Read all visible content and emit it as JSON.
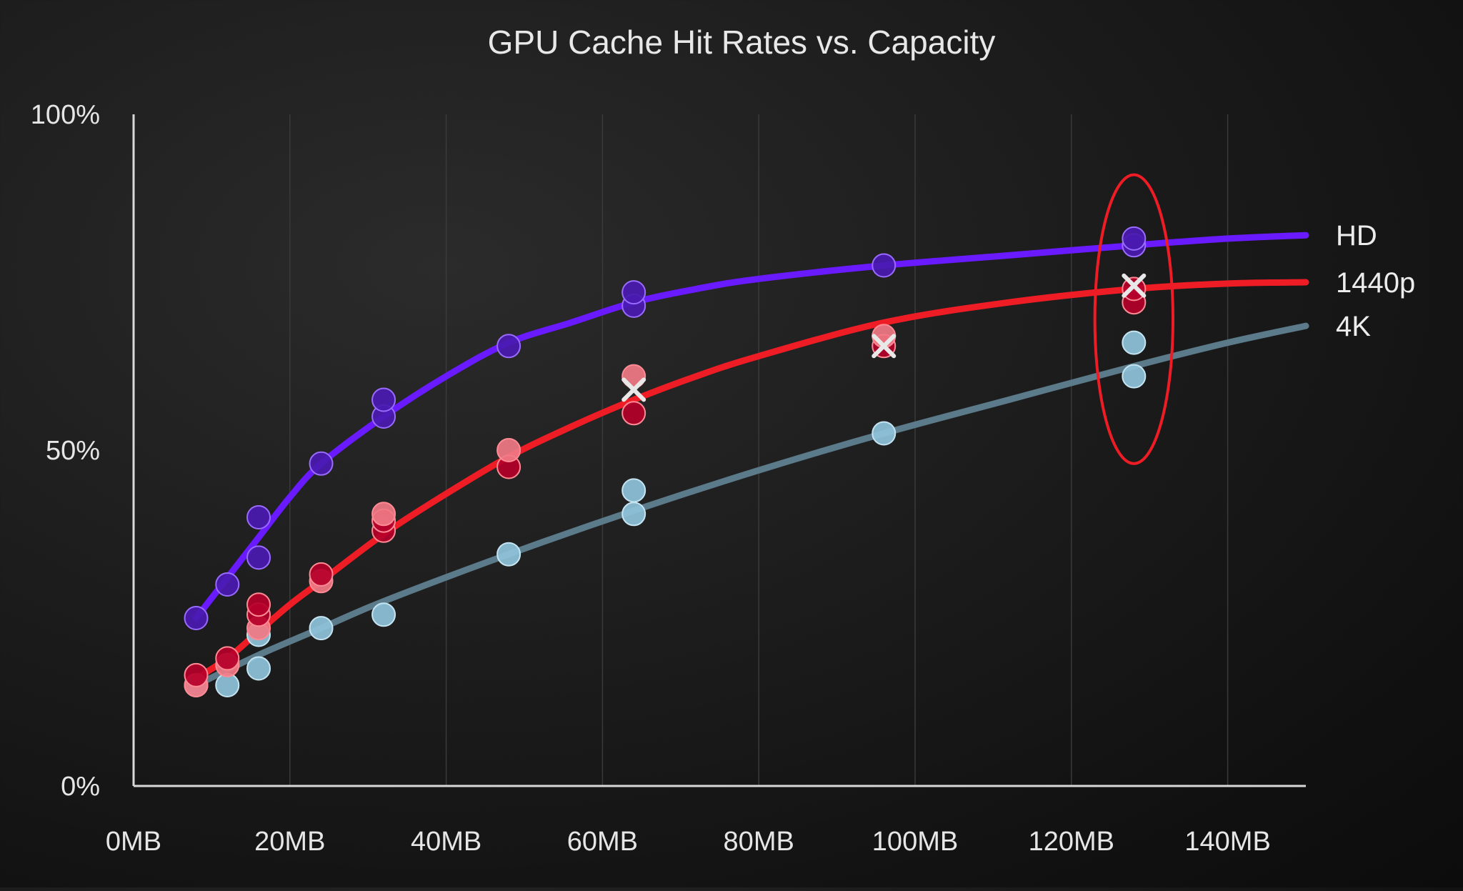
{
  "chart_data": {
    "type": "scatter",
    "title": "GPU Cache Hit Rates vs. Capacity",
    "xlabel": "",
    "ylabel": "",
    "x_ticks": [
      "0MB",
      "20MB",
      "40MB",
      "60MB",
      "80MB",
      "100MB",
      "120MB",
      "140MB"
    ],
    "x_tick_values": [
      0,
      20,
      40,
      60,
      80,
      100,
      120,
      140
    ],
    "y_ticks": [
      "0%",
      "50%",
      "100%"
    ],
    "y_tick_values": [
      0,
      50,
      100
    ],
    "xlim": [
      0,
      150
    ],
    "ylim": [
      0,
      100
    ],
    "grid": "vertical",
    "legend": "right, inline at line ends",
    "series": [
      {
        "name": "HD",
        "color": "#6a1aff",
        "fill": "#4a1ab0",
        "trend_x": [
          8,
          12,
          16,
          20,
          24,
          32,
          40,
          48,
          56,
          64,
          72,
          80,
          96,
          112,
          128,
          140,
          150
        ],
        "trend_y": [
          25,
          31,
          37,
          43,
          48,
          55,
          61,
          66,
          69,
          72,
          74,
          75.5,
          77.5,
          79,
          80.5,
          81.5,
          82
        ],
        "points": [
          {
            "x": 8,
            "y": 25
          },
          {
            "x": 12,
            "y": 30
          },
          {
            "x": 16,
            "y": 34
          },
          {
            "x": 16,
            "y": 40
          },
          {
            "x": 24,
            "y": 48
          },
          {
            "x": 32,
            "y": 55
          },
          {
            "x": 32,
            "y": 57.5
          },
          {
            "x": 48,
            "y": 65.5
          },
          {
            "x": 64,
            "y": 71.5
          },
          {
            "x": 64,
            "y": 73.5
          },
          {
            "x": 96,
            "y": 77.5
          },
          {
            "x": 128,
            "y": 80.5
          },
          {
            "x": 128,
            "y": 81.5
          }
        ]
      },
      {
        "name": "1440p",
        "color": "#ee1c25",
        "fill": "#b5002a",
        "fill_alt": "#f07a86",
        "trend_x": [
          8,
          12,
          16,
          20,
          24,
          32,
          40,
          48,
          56,
          64,
          72,
          80,
          96,
          112,
          128,
          140,
          150
        ],
        "trend_y": [
          16,
          19,
          23,
          27,
          30.5,
          37.5,
          43.5,
          49,
          53.5,
          57.5,
          61,
          64,
          69,
          72,
          74,
          74.8,
          75
        ],
        "points": [
          {
            "x": 8,
            "y": 15,
            "alt": true
          },
          {
            "x": 8,
            "y": 16.5
          },
          {
            "x": 12,
            "y": 18,
            "alt": true
          },
          {
            "x": 12,
            "y": 19
          },
          {
            "x": 16,
            "y": 23.5,
            "alt": true
          },
          {
            "x": 16,
            "y": 25.5
          },
          {
            "x": 16,
            "y": 27
          },
          {
            "x": 24,
            "y": 30.5,
            "alt": true
          },
          {
            "x": 24,
            "y": 31.5
          },
          {
            "x": 32,
            "y": 38
          },
          {
            "x": 32,
            "y": 39.5
          },
          {
            "x": 32,
            "y": 40.5,
            "alt": true
          },
          {
            "x": 48,
            "y": 47.5
          },
          {
            "x": 48,
            "y": 50,
            "alt": true
          },
          {
            "x": 64,
            "y": 55.5
          },
          {
            "x": 64,
            "y": 61,
            "alt": true
          },
          {
            "x": 96,
            "y": 65.5
          },
          {
            "x": 96,
            "y": 67,
            "alt": true
          },
          {
            "x": 128,
            "y": 72
          },
          {
            "x": 128,
            "y": 74
          }
        ],
        "crosses": [
          {
            "x": 64,
            "y": 59
          },
          {
            "x": 96,
            "y": 65.5
          },
          {
            "x": 128,
            "y": 74.5
          }
        ]
      },
      {
        "name": "4K",
        "color": "#5b7a8a",
        "fill": "#8fc3da",
        "trend_x": [
          8,
          16,
          24,
          32,
          48,
          64,
          80,
          96,
          112,
          128,
          140,
          150
        ],
        "trend_y": [
          15,
          19.5,
          23.5,
          27.5,
          34.5,
          41,
          47,
          52.5,
          57.5,
          62.5,
          66,
          68.5
        ],
        "points": [
          {
            "x": 8,
            "y": 15
          },
          {
            "x": 12,
            "y": 15
          },
          {
            "x": 16,
            "y": 17.5
          },
          {
            "x": 16,
            "y": 22.5
          },
          {
            "x": 24,
            "y": 23.5
          },
          {
            "x": 32,
            "y": 25.5
          },
          {
            "x": 48,
            "y": 34.5
          },
          {
            "x": 64,
            "y": 40.5
          },
          {
            "x": 64,
            "y": 44
          },
          {
            "x": 96,
            "y": 52.5
          },
          {
            "x": 128,
            "y": 61
          },
          {
            "x": 128,
            "y": 66
          }
        ]
      }
    ],
    "annotations": [
      {
        "type": "ellipse",
        "color": "#ee1c25",
        "x": 128,
        "y": 69.5,
        "rx_data": 5,
        "ry_data": 21.5
      }
    ]
  }
}
